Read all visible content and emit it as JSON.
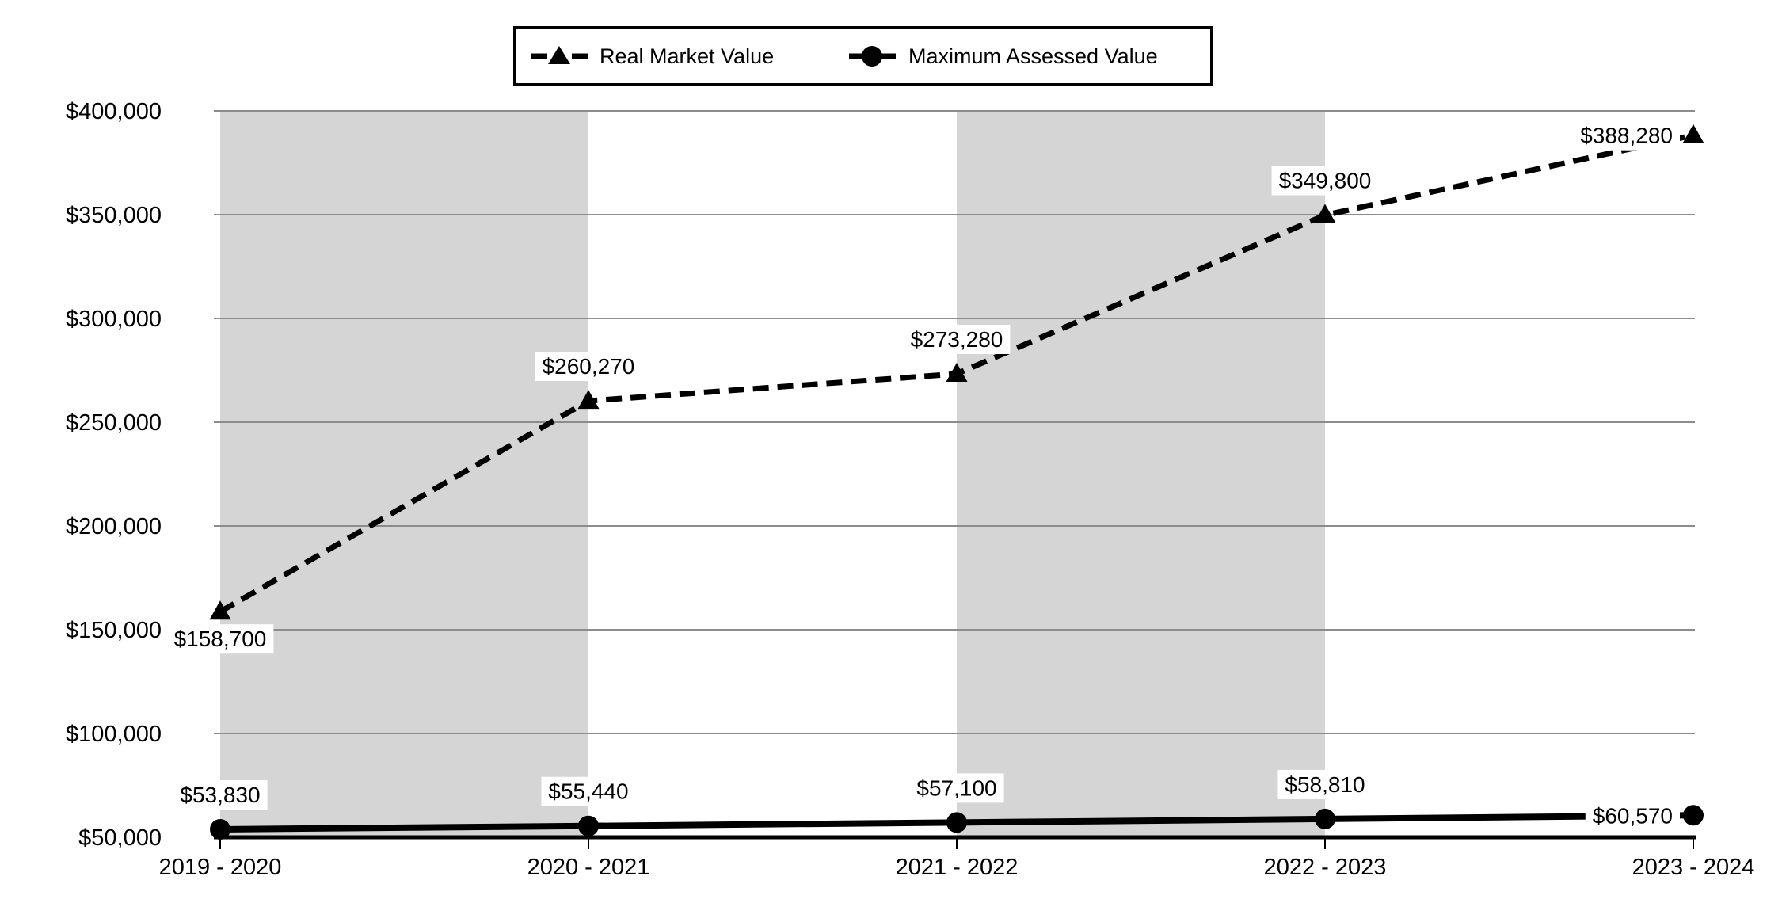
{
  "chart_data": {
    "type": "line",
    "title": "",
    "categories": [
      "2019 - 2020",
      "2020 - 2021",
      "2021 - 2022",
      "2022 - 2023",
      "2023 - 2024"
    ],
    "series": [
      {
        "name": "Real Market Value",
        "line_style": "dashed",
        "marker": "triangle",
        "values": [
          158700,
          260270,
          273280,
          349800,
          388280
        ],
        "labels": [
          "$158,700",
          "$260,270",
          "$273,280",
          "$349,800",
          "$388,280"
        ],
        "label_placement": [
          "below",
          "above",
          "above",
          "above",
          "left"
        ]
      },
      {
        "name": "Maximum Assessed Value",
        "line_style": "solid",
        "marker": "circle",
        "values": [
          53830,
          55440,
          57100,
          58810,
          60570
        ],
        "labels": [
          "$53,830",
          "$55,440",
          "$57,100",
          "$58,810",
          "$60,570"
        ],
        "label_placement": [
          "above",
          "above",
          "above",
          "above",
          "left"
        ]
      }
    ],
    "y_axis": {
      "min": 50000,
      "max": 400000,
      "step": 50000,
      "tick_labels": [
        "$50,000",
        "$100,000",
        "$150,000",
        "$200,000",
        "$250,000",
        "$300,000",
        "$350,000",
        "$400,000"
      ]
    },
    "x_axis": {
      "tick_labels": [
        "2019 - 2020",
        "2020 - 2021",
        "2021 - 2022",
        "2022 - 2023",
        "2023 - 2024"
      ]
    },
    "bands_between_points": [
      [
        0,
        1
      ],
      [
        2,
        3
      ]
    ],
    "legend": {
      "position": "top",
      "border": true
    },
    "grid": true,
    "colors": {
      "series_line": "#000000",
      "band_fill": "#d5d5d5",
      "gridline": "#8c8c8c",
      "axis_line": "#000000",
      "label_background": "#ffffff",
      "text": "#000000",
      "background": "#ffffff"
    }
  }
}
